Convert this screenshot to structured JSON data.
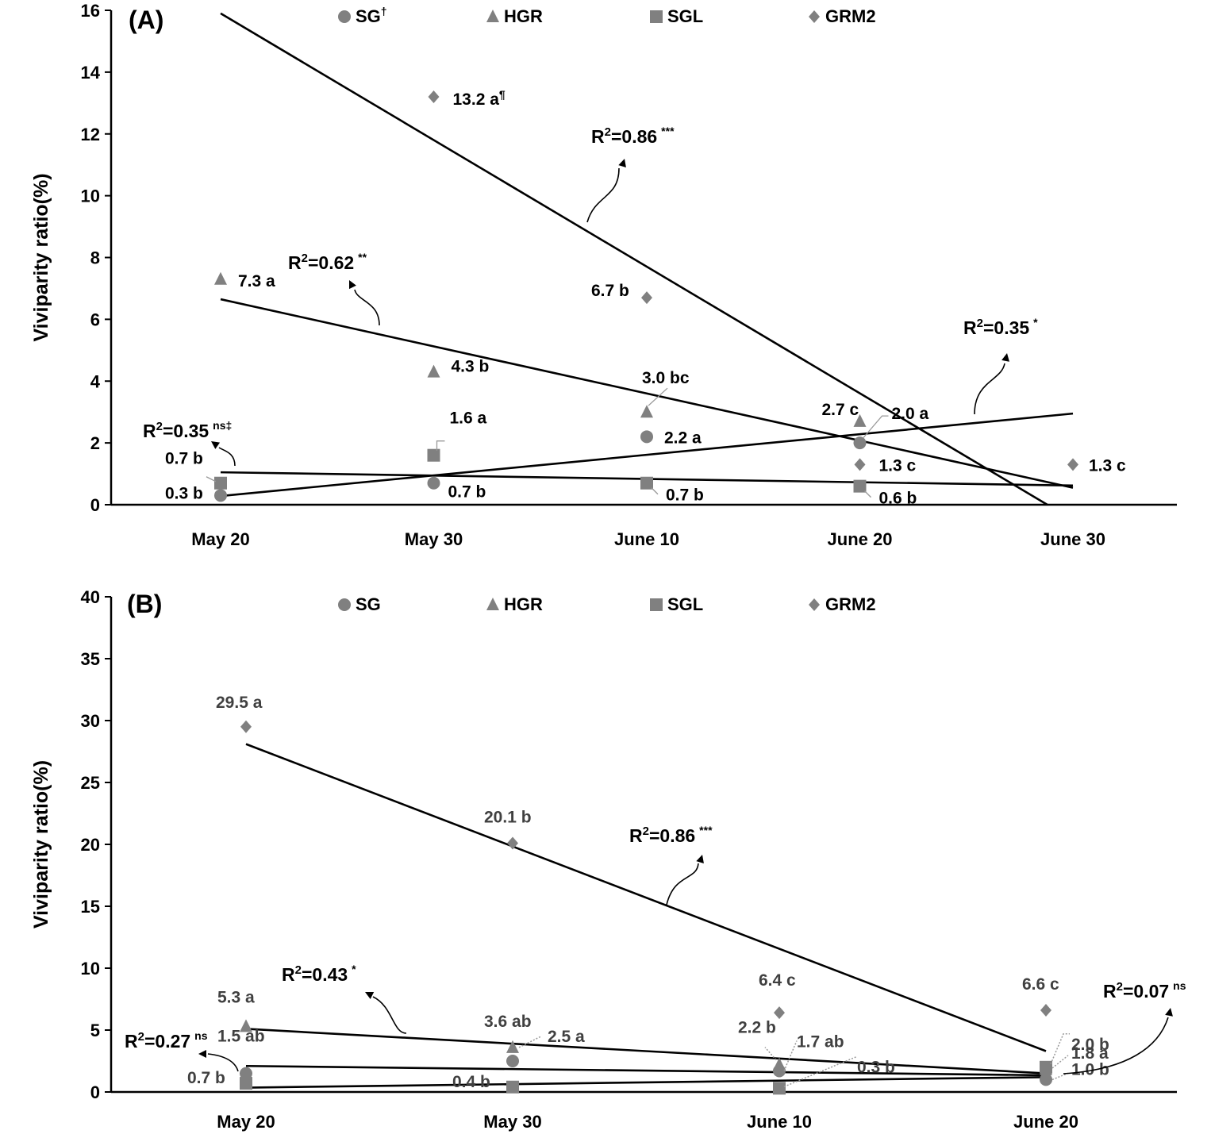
{
  "chart_data": [
    {
      "type": "scatter",
      "panel": "(A)",
      "ylabel": "Viviparity ratio(%)",
      "ylim": [
        0,
        16
      ],
      "yticks": [
        0,
        2,
        4,
        6,
        8,
        10,
        12,
        14,
        16
      ],
      "categories": [
        "May 20",
        "May 30",
        "June 10",
        "June 20",
        "June 30"
      ],
      "legend": [
        {
          "name": "SG",
          "sup": "†",
          "marker": "circle"
        },
        {
          "name": "HGR",
          "sup": "",
          "marker": "triangle"
        },
        {
          "name": "SGL",
          "sup": "",
          "marker": "square"
        },
        {
          "name": "GRM2",
          "sup": "",
          "marker": "diamond"
        }
      ],
      "series": [
        {
          "name": "SG",
          "marker": "circle",
          "x": [
            0,
            1,
            2,
            3
          ],
          "values": [
            0.3,
            0.7,
            2.2,
            2.0
          ],
          "labels": [
            "0.3 b",
            "0.7 b",
            "2.2 a",
            "2.0 a"
          ],
          "trend": {
            "x0": 0,
            "y0": 0.28,
            "x1": 4,
            "y1": 2.95
          }
        },
        {
          "name": "HGR",
          "marker": "triangle",
          "x": [
            0,
            1,
            2,
            3
          ],
          "values": [
            7.3,
            4.3,
            3.0,
            2.7
          ],
          "labels": [
            "7.3 a",
            "4.3 b",
            "3.0 bc",
            "2.7 c"
          ],
          "trend": {
            "x0": 0,
            "y0": 6.65,
            "x1": 4,
            "y1": 0.55
          }
        },
        {
          "name": "SGL",
          "marker": "square",
          "x": [
            0,
            1,
            2,
            3
          ],
          "values": [
            0.7,
            1.6,
            0.7,
            0.6
          ],
          "labels": [
            "0.7 b",
            "1.6 a",
            "0.7 b",
            "0.6 b"
          ],
          "trend": {
            "x0": 0,
            "y0": 1.05,
            "x1": 4,
            "y1": 0.62
          }
        },
        {
          "name": "GRM2",
          "marker": "diamond",
          "x": [
            1,
            2,
            3,
            4
          ],
          "values": [
            13.2,
            6.7,
            1.3,
            1.3
          ],
          "labels": [
            "13.2 a",
            "6.7 b",
            "1.3 c",
            "1.3 c"
          ],
          "trend": {
            "x0": 0,
            "y0": 15.9,
            "x1": 3.88,
            "y1": 0
          }
        }
      ],
      "annotations": [
        {
          "text": "R2=0.86",
          "sig": "***"
        },
        {
          "text": "R2=0.62",
          "sig": "**"
        },
        {
          "text": "R2=0.35",
          "sig": "*"
        },
        {
          "text": "R2=0.35",
          "sig": "ns‡"
        }
      ],
      "footnote_mark": "¶"
    },
    {
      "type": "scatter",
      "panel": "(B)",
      "ylabel": "Viviparity ratio(%)",
      "ylim": [
        0,
        40
      ],
      "yticks": [
        0,
        5,
        10,
        15,
        20,
        25,
        30,
        35,
        40
      ],
      "categories": [
        "May 20",
        "May 30",
        "June 10",
        "June 20"
      ],
      "legend": [
        {
          "name": "SG",
          "sup": "",
          "marker": "circle"
        },
        {
          "name": "HGR",
          "sup": "",
          "marker": "triangle"
        },
        {
          "name": "SGL",
          "sup": "",
          "marker": "square"
        },
        {
          "name": "GRM2",
          "sup": "",
          "marker": "diamond"
        }
      ],
      "series": [
        {
          "name": "SG",
          "marker": "circle",
          "x": [
            0,
            1,
            2,
            3
          ],
          "values": [
            1.5,
            2.5,
            1.7,
            1.0
          ],
          "labels": [
            "1.5 ab",
            "2.5 a",
            "1.7 ab",
            "1.0 b"
          ]
        },
        {
          "name": "HGR",
          "marker": "triangle",
          "x": [
            0,
            1,
            2,
            3
          ],
          "values": [
            5.3,
            3.6,
            2.2,
            1.8
          ],
          "labels": [
            "5.3 a",
            "3.6 ab",
            "2.2 b",
            "1.8 a"
          ]
        },
        {
          "name": "SGL",
          "marker": "square",
          "x": [
            0,
            1,
            2,
            3
          ],
          "values": [
            0.7,
            0.4,
            0.3,
            2.0
          ],
          "labels": [
            "0.7 b",
            "0.4 b",
            "0.3 b",
            "2.0 b"
          ]
        },
        {
          "name": "GRM2",
          "marker": "diamond",
          "x": [
            0,
            1,
            2,
            3
          ],
          "values": [
            29.5,
            20.1,
            6.4,
            6.6
          ],
          "labels": [
            "29.5 a",
            "20.1 b",
            "6.4 c",
            "6.6 c"
          ]
        }
      ],
      "trends": [
        {
          "x0": 0,
          "y0": 28.1,
          "x1": 3,
          "y1": 3.3
        },
        {
          "x0": 0,
          "y0": 5.1,
          "x1": 3,
          "y1": 1.5
        },
        {
          "x0": 0,
          "y0": 2.1,
          "x1": 3,
          "y1": 1.35
        },
        {
          "x0": 0,
          "y0": 0.35,
          "x1": 3,
          "y1": 1.2
        }
      ],
      "annotations": [
        {
          "text": "R2=0.86",
          "sig": "***"
        },
        {
          "text": "R2=0.43",
          "sig": "*"
        },
        {
          "text": "R2=0.07",
          "sig": "ns"
        },
        {
          "text": "R2=0.27",
          "sig": "ns"
        }
      ]
    }
  ]
}
